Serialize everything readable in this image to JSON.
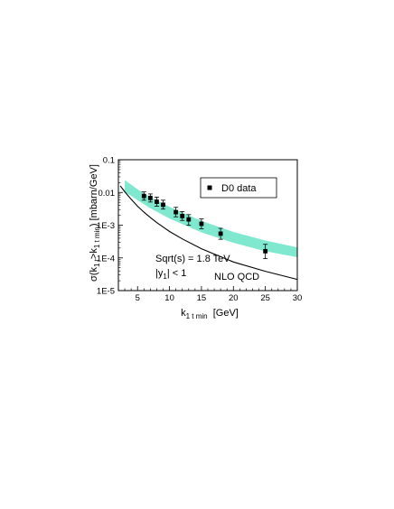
{
  "chart_data": {
    "type": "scatter",
    "xlabel": {
      "main": "k",
      "sub": "1 t min",
      "rest": "  [GeV]"
    },
    "ylabel": {
      "p1": "σ(k",
      "s1": "1 t",
      "p2": ">k",
      "s2": "1 t min",
      "p3": ")  [mbarn/GeV]"
    },
    "xlim": [
      2,
      30
    ],
    "ylim": [
      1e-05,
      0.1
    ],
    "yscale": "log",
    "x_ticks": [
      5,
      10,
      15,
      20,
      25,
      30
    ],
    "x_tick_labels": [
      "5",
      "10",
      "15",
      "20",
      "25",
      "30"
    ],
    "y_ticks": [
      1e-05,
      0.0001,
      0.001,
      0.01,
      0.1
    ],
    "y_tick_labels": [
      "1E-5",
      "1E-4",
      "1E-3",
      "0.01",
      "0.1"
    ],
    "grid": false,
    "legend": {
      "position": "top-right",
      "label": "D0 data"
    },
    "annotations": {
      "energy": "Sqrt(s) = 1.8 TeV",
      "rapidity": {
        "prefix": "|y",
        "sub": "1",
        "suffix": "| < 1"
      },
      "model": "NLO QCD"
    },
    "series": [
      {
        "name": "D0 data",
        "kind": "points_with_errors",
        "color": "#000000",
        "x": [
          6,
          7,
          8,
          9,
          11,
          12,
          13,
          15,
          18,
          25
        ],
        "y": [
          0.0078,
          0.0068,
          0.0052,
          0.0042,
          0.0025,
          0.0019,
          0.0015,
          0.0011,
          0.00055,
          0.00016
        ],
        "y_low": [
          0.0058,
          0.0051,
          0.0038,
          0.0031,
          0.0018,
          0.0014,
          0.001,
          0.00078,
          0.00037,
          9.5e-05
        ],
        "y_high": [
          0.0104,
          0.009,
          0.0072,
          0.0058,
          0.0035,
          0.0026,
          0.0021,
          0.00155,
          0.0008,
          0.00026
        ]
      },
      {
        "kind": "band",
        "color": "#7fe8cf",
        "x": [
          3,
          5,
          7,
          10,
          15,
          20,
          25,
          30
        ],
        "lower": [
          0.0105,
          0.0058,
          0.0033,
          0.0016,
          0.0006,
          0.00029,
          0.00016,
          0.000105
        ],
        "upper": [
          0.024,
          0.0125,
          0.0072,
          0.0036,
          0.00135,
          0.00062,
          0.00034,
          0.00021
        ]
      },
      {
        "name": "NLO QCD",
        "kind": "line",
        "color": "#000000",
        "x": [
          2.3,
          3,
          4,
          5,
          6,
          7,
          8,
          10,
          12,
          15,
          20,
          25,
          30
        ],
        "y": [
          0.016,
          0.0105,
          0.0062,
          0.0038,
          0.0025,
          0.0017,
          0.0012,
          0.00064,
          0.00038,
          0.00019,
          7.5e-05,
          3.9e-05,
          2.2e-05
        ]
      }
    ]
  }
}
